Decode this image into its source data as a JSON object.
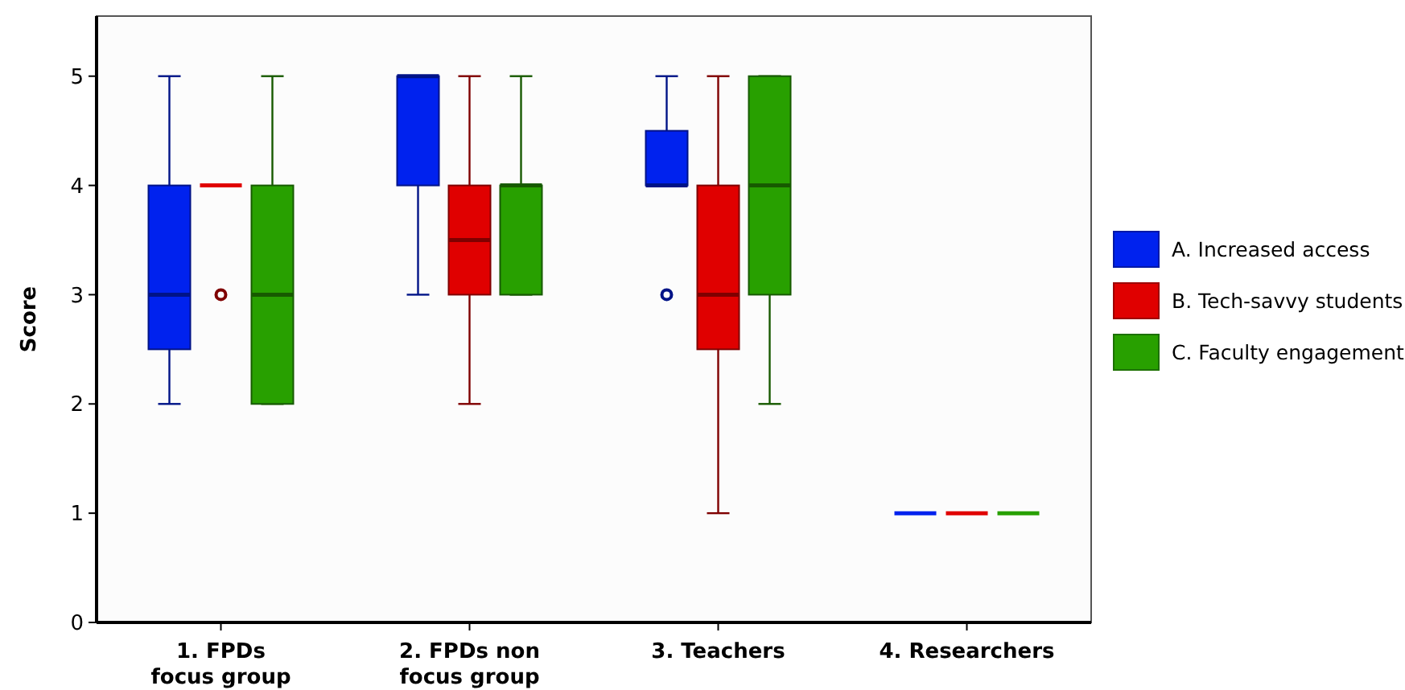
{
  "chart_data": {
    "type": "box",
    "ylabel": "Score",
    "categories": [
      "1. FPDs focus group",
      "2. FPDs non focus group",
      "3. Teachers",
      "4. Researchers"
    ],
    "ylim": [
      0,
      5.55
    ],
    "yticks": [
      0,
      1,
      2,
      3,
      4,
      5
    ],
    "legend": "right",
    "grid": false,
    "series": [
      {
        "name": "A. Increased access",
        "color": "#0022ee",
        "boxes": [
          {
            "low": 2,
            "q1": 2.5,
            "median": 3,
            "q3": 4,
            "high": 5
          },
          {
            "low": 3,
            "q1": 4,
            "median": 5,
            "q3": 5,
            "high": 5
          },
          {
            "low": 4,
            "q1": 4,
            "median": 4,
            "q3": 4.5,
            "high": 5,
            "outliers": [
              3
            ]
          },
          {
            "low": 1,
            "q1": 1,
            "median": 1,
            "q3": 1,
            "high": 1
          }
        ]
      },
      {
        "name": "B. Tech-savvy students",
        "color": "#e00000",
        "boxes": [
          {
            "low": 4,
            "q1": 4,
            "median": 4,
            "q3": 4,
            "high": 4,
            "outliers": [
              3
            ]
          },
          {
            "low": 2,
            "q1": 3,
            "median": 3.5,
            "q3": 4,
            "high": 5
          },
          {
            "low": 1,
            "q1": 2.5,
            "median": 3,
            "q3": 4,
            "high": 5
          },
          {
            "low": 1,
            "q1": 1,
            "median": 1,
            "q3": 1,
            "high": 1
          }
        ]
      },
      {
        "name": "C. Faculty engagement",
        "color": "#28a000",
        "boxes": [
          {
            "low": 2,
            "q1": 2,
            "median": 3,
            "q3": 4,
            "high": 5
          },
          {
            "low": 3,
            "q1": 3,
            "median": 4,
            "q3": 4,
            "high": 5
          },
          {
            "low": 2,
            "q1": 3,
            "median": 4,
            "q3": 5,
            "high": 5
          },
          {
            "low": 1,
            "q1": 1,
            "median": 1,
            "q3": 1,
            "high": 1
          }
        ]
      }
    ]
  }
}
